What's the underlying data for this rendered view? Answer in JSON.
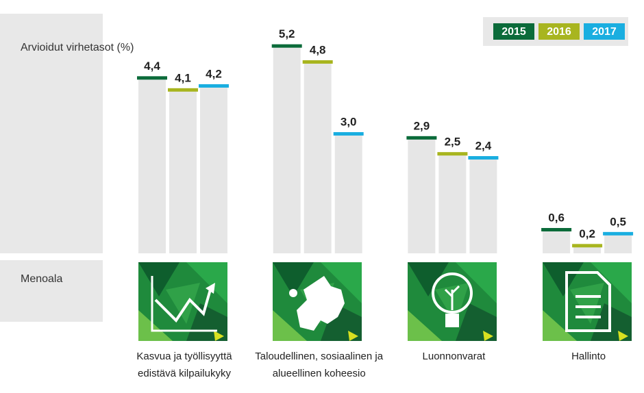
{
  "chart_data": {
    "type": "bar",
    "y_axis_label": "Arvioidut virhetasot (%)",
    "category_label": "Menoala",
    "categories": [
      "Kasvua ja työllisyyttä edistävä kilpailukyky",
      "Taloudellinen, sosiaalinen ja alueellinen koheesio",
      "Luonnonvarat",
      "Hallinto"
    ],
    "series": [
      {
        "name": "2015",
        "color": "#0b6b3a",
        "values": [
          4.4,
          5.2,
          2.9,
          0.6
        ],
        "value_labels": [
          "4,4",
          "5,2",
          "2,9",
          "0,6"
        ]
      },
      {
        "name": "2016",
        "color": "#a8b51f",
        "values": [
          4.1,
          4.8,
          2.5,
          0.2
        ],
        "value_labels": [
          "4,1",
          "4,8",
          "2,5",
          "0,2"
        ]
      },
      {
        "name": "2017",
        "color": "#1aaee0",
        "values": [
          4.2,
          3.0,
          2.4,
          0.5
        ],
        "value_labels": [
          "4,2",
          "3,0",
          "2,4",
          "0,5"
        ]
      }
    ],
    "ylim": [
      0,
      6
    ],
    "legend": "top-right"
  }
}
